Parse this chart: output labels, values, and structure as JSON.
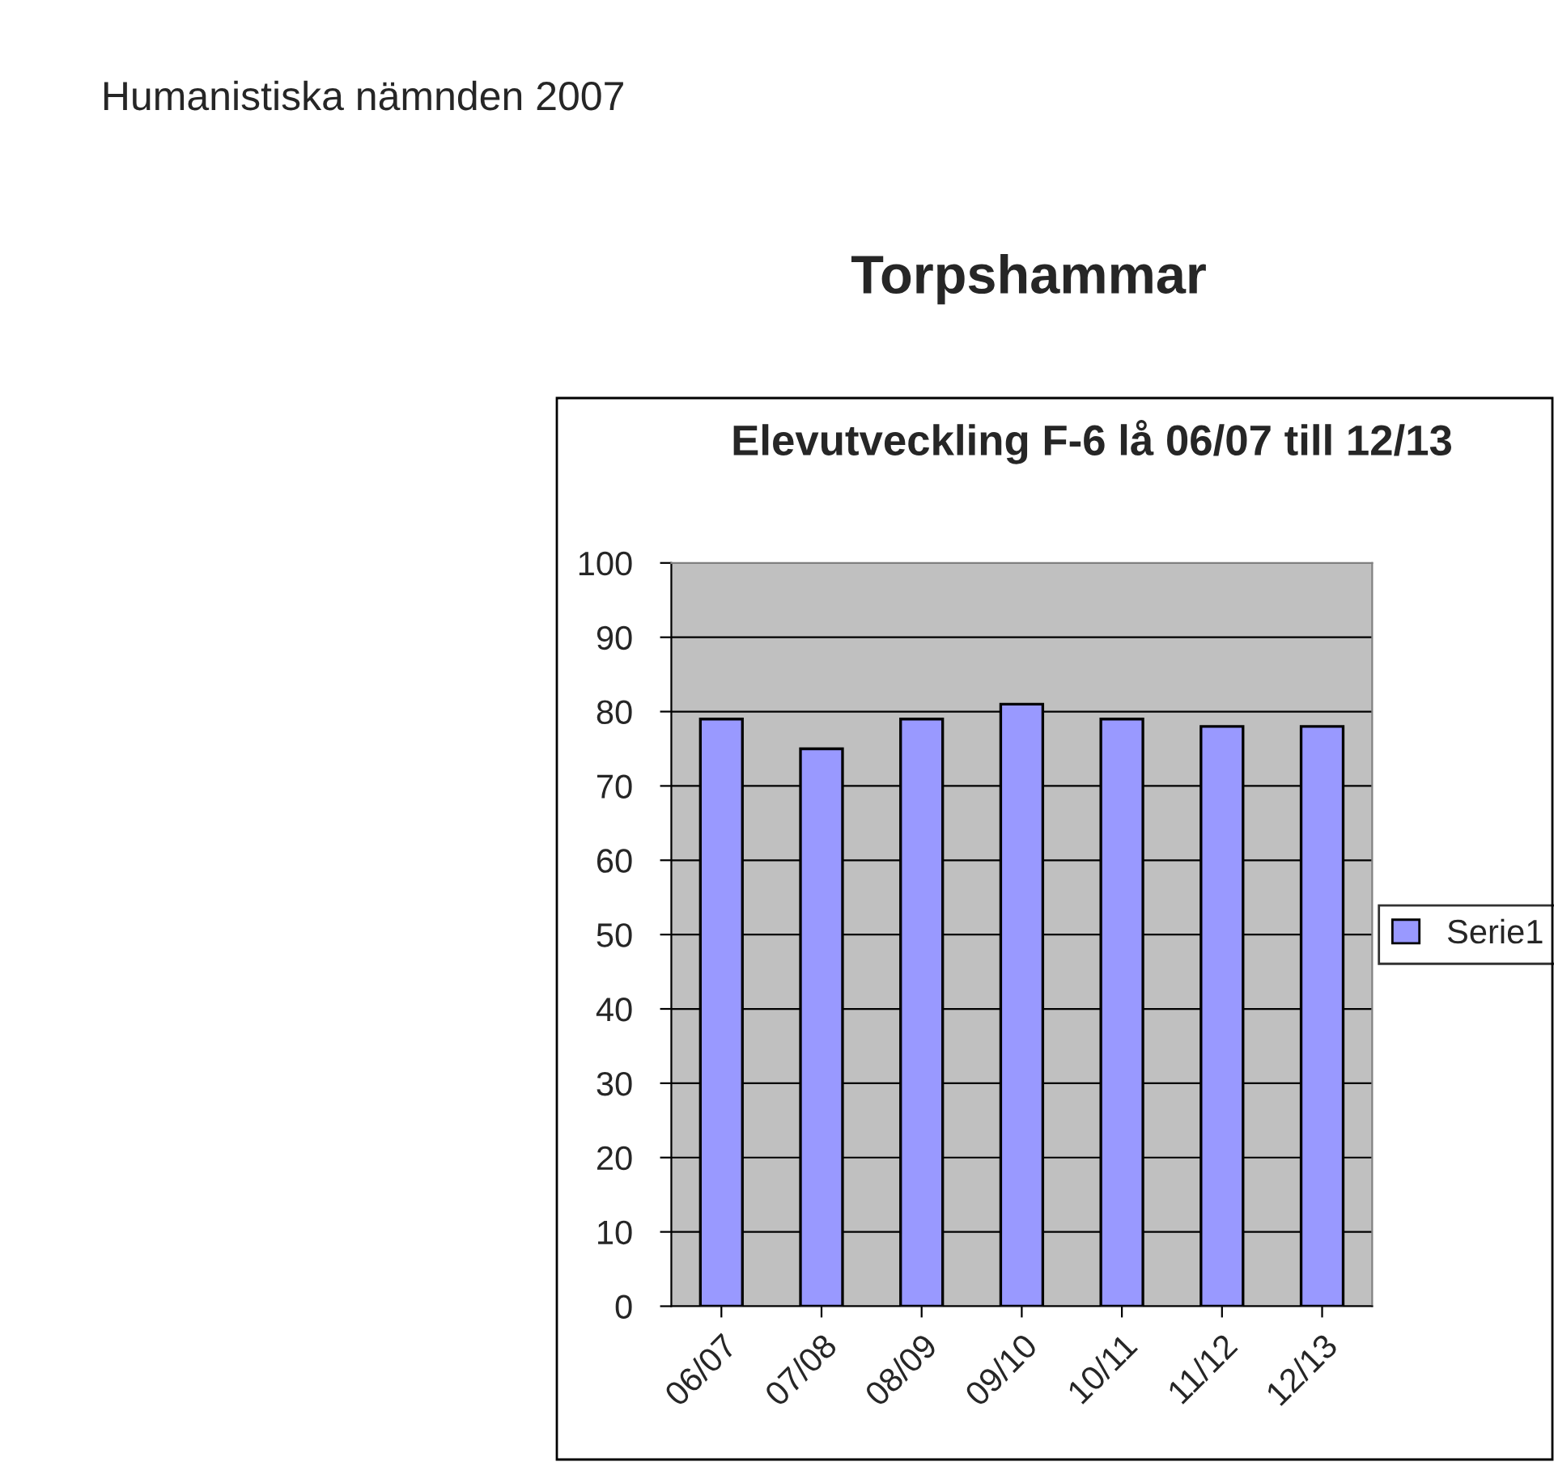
{
  "chart_data": {
    "type": "bar",
    "title": "Elevutveckling F-6 lå 06/07 till 12/13",
    "annotations": [
      "Humanistiska nämnden 2007",
      "Torpshammar"
    ],
    "categories": [
      "06/07",
      "07/08",
      "08/09",
      "09/10",
      "10/11",
      "11/12",
      "12/13"
    ],
    "series": [
      {
        "name": "Serie1",
        "color": "#9999ff",
        "values": [
          79,
          75,
          79,
          81,
          79,
          78,
          78
        ]
      }
    ],
    "ylim": [
      0,
      100
    ],
    "yticks": [
      0,
      10,
      20,
      30,
      40,
      50,
      60,
      70,
      80,
      90,
      100
    ],
    "grid": "y",
    "legend": "right"
  }
}
